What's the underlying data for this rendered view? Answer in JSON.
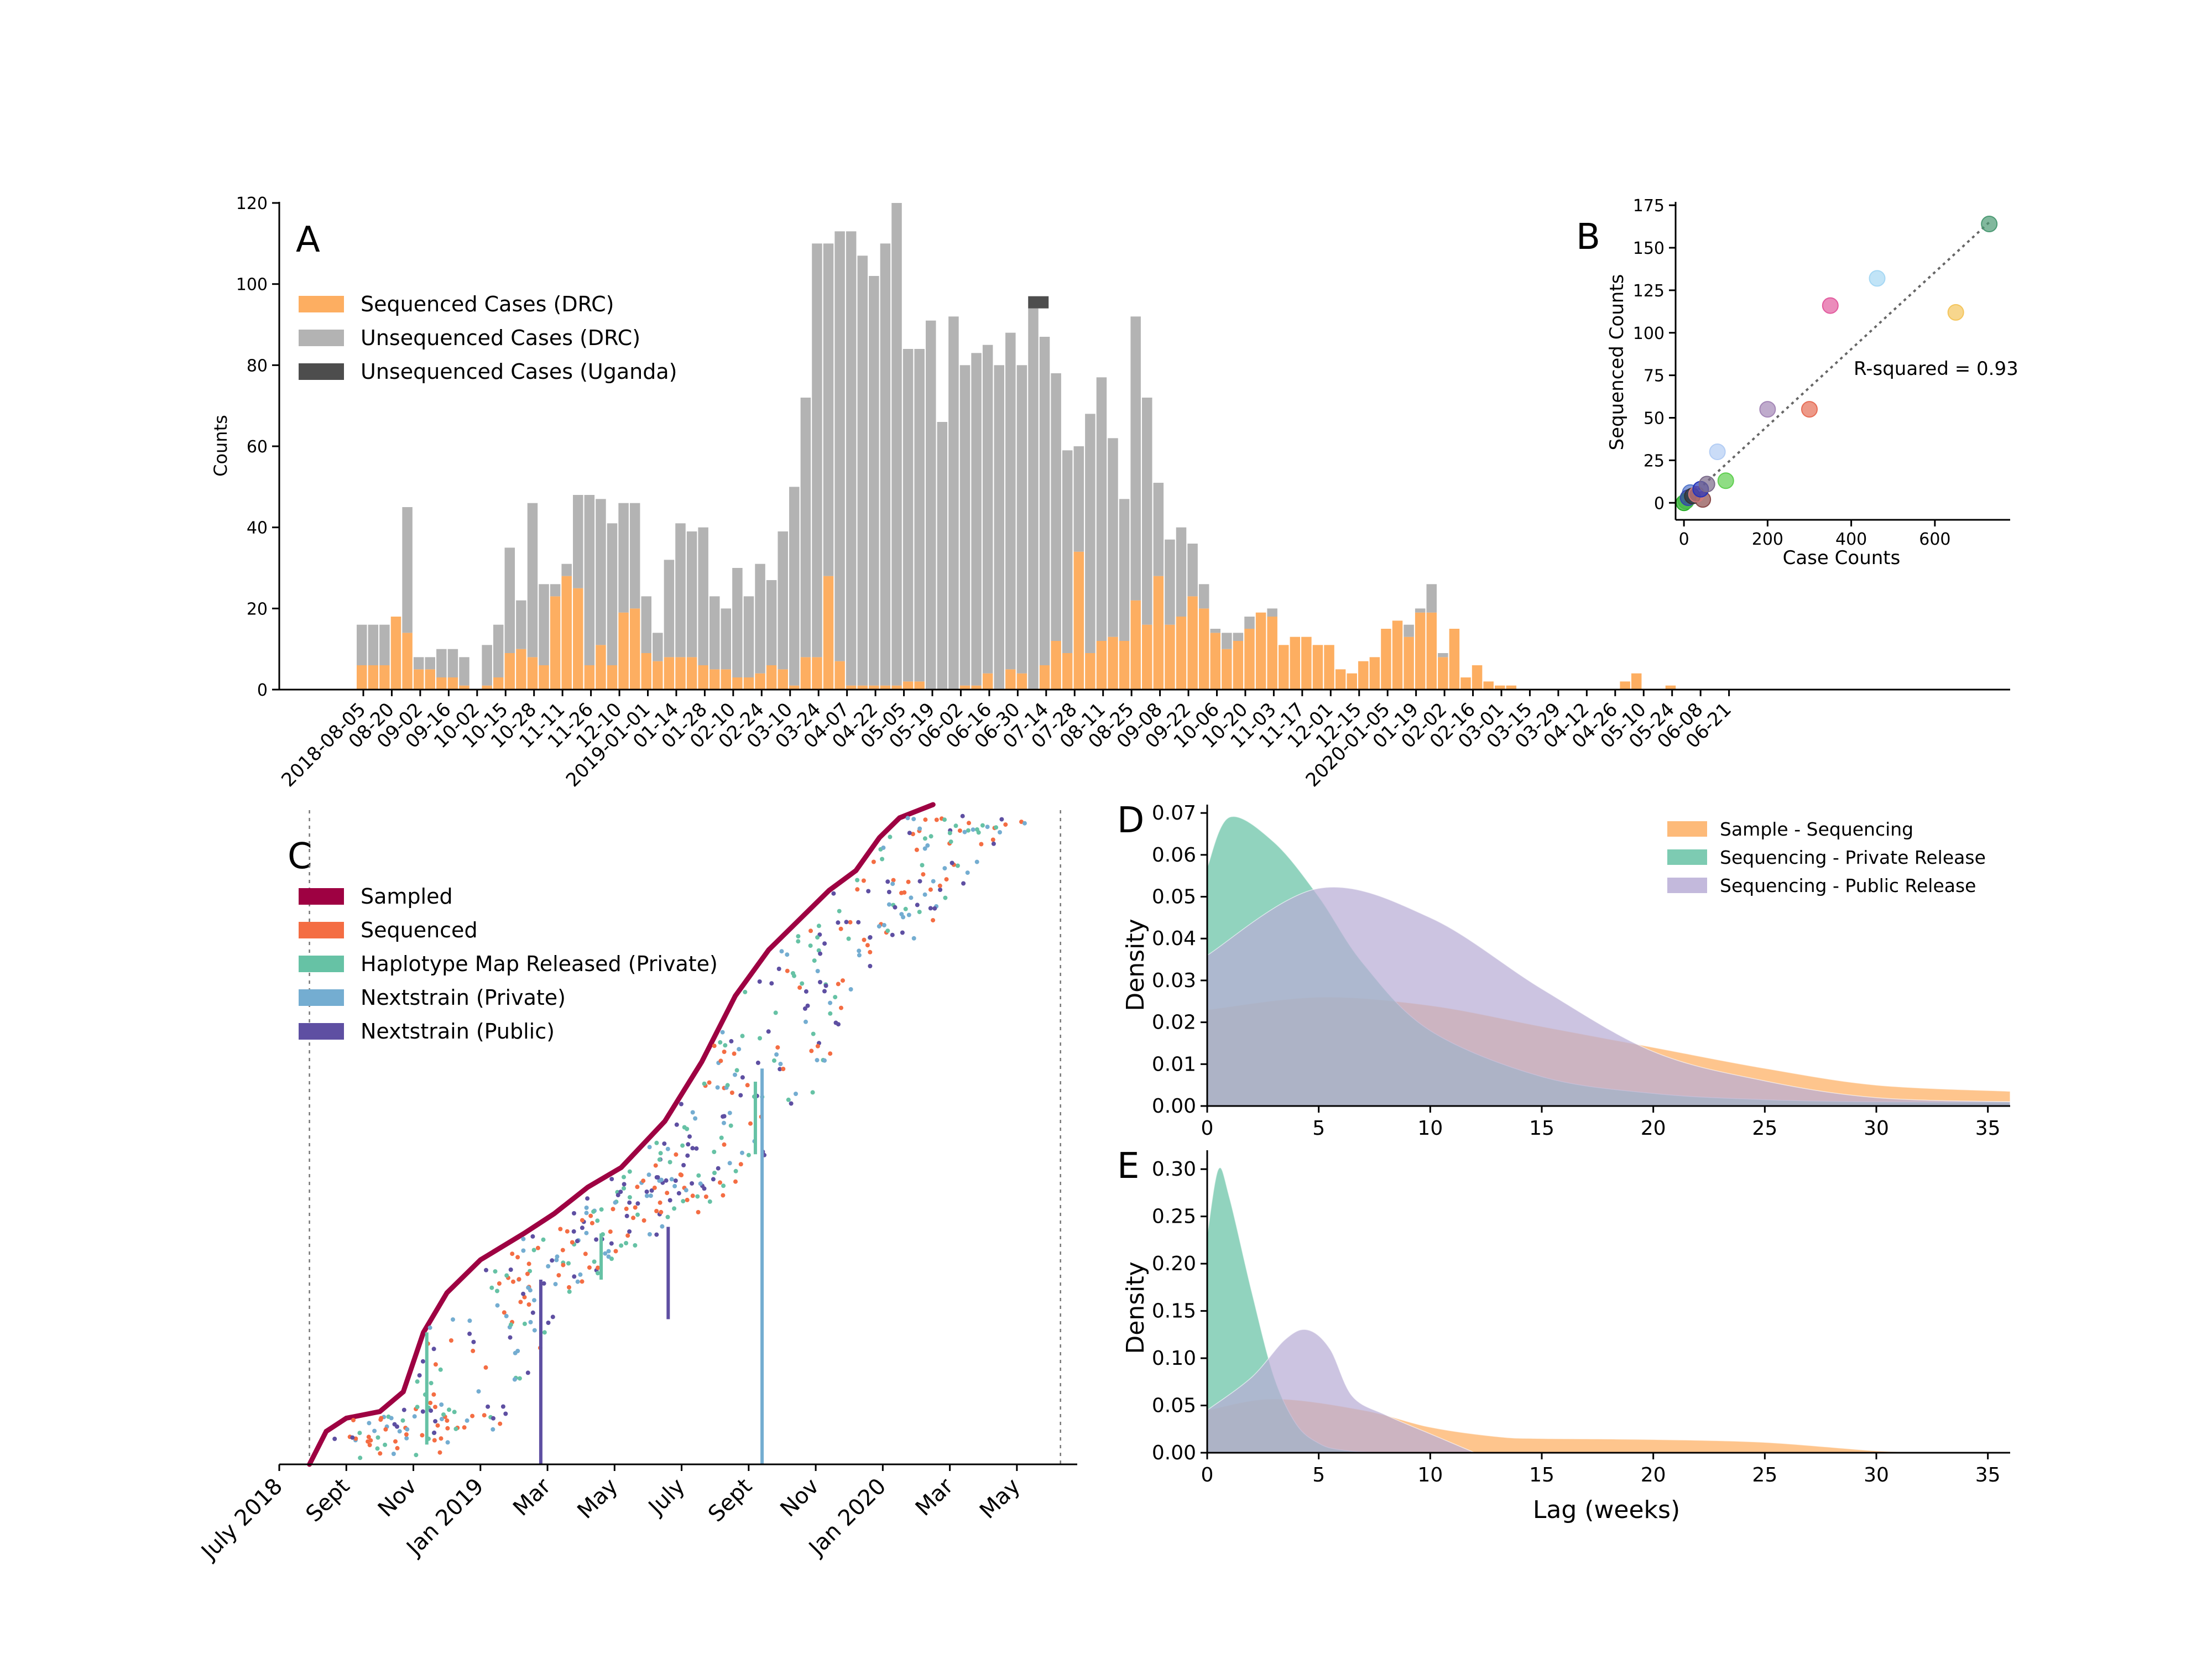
{
  "chart_data": [
    {
      "panel": "A",
      "type": "bar",
      "stacked": true,
      "ylabel": "Counts",
      "ylim": [
        0,
        120
      ],
      "yticks": [
        0,
        20,
        40,
        60,
        80,
        100,
        120
      ],
      "legend": [
        "Sequenced Cases (DRC)",
        "Unsequenced Cases (DRC)",
        "Unsequenced Cases (Uganda)"
      ],
      "colors": {
        "sequenced": "#fdae61",
        "unsequenced": "#b3b3b3",
        "uganda": "#4d4d4d"
      },
      "tick_labels": [
        "2018-08-05",
        "08-20",
        "09-02",
        "09-16",
        "10-02",
        "10-15",
        "10-28",
        "11-11",
        "11-26",
        "12-10",
        "2019-01-01",
        "01-14",
        "01-28",
        "02-10",
        "02-24",
        "03-10",
        "03-24",
        "04-07",
        "04-22",
        "05-05",
        "05-19",
        "06-02",
        "06-16",
        "06-30",
        "07-14",
        "07-28",
        "08-11",
        "08-25",
        "09-08",
        "09-22",
        "10-06",
        "10-20",
        "11-03",
        "11-17",
        "12-01",
        "12-15",
        "2020-01-05",
        "01-19",
        "02-02",
        "02-16",
        "03-01",
        "03-15",
        "03-29",
        "04-12",
        "04-26",
        "05-10",
        "05-24",
        "06-08",
        "06-21"
      ],
      "series": [
        {
          "name": "Sequenced Cases (DRC)",
          "values": [
            6,
            6,
            6,
            18,
            14,
            5,
            5,
            3,
            3,
            1,
            0,
            1,
            3,
            9,
            10,
            8,
            6,
            23,
            28,
            25,
            6,
            11,
            6,
            19,
            20,
            9,
            7,
            8,
            8,
            8,
            6,
            5,
            5,
            3,
            3,
            4,
            6,
            5,
            1,
            8,
            8,
            28,
            7,
            1,
            1,
            1,
            1,
            1,
            2,
            2,
            0,
            0,
            0,
            1,
            1,
            4,
            0,
            5,
            4,
            0,
            6,
            12,
            9,
            34,
            9,
            12,
            13,
            12,
            22,
            16,
            28,
            16,
            18,
            23,
            20,
            14,
            10,
            12,
            15,
            19,
            18,
            11,
            13,
            13,
            11,
            11,
            5,
            4,
            7,
            8,
            15,
            17,
            13,
            19,
            19,
            8,
            15,
            3,
            6,
            2,
            1,
            1,
            0,
            0,
            0,
            0,
            0,
            0,
            0,
            0,
            0,
            2,
            4,
            0,
            0,
            1,
            0,
            0,
            0,
            0,
            0,
            0,
            0,
            0,
            0,
            0
          ]
        },
        {
          "name": "Unsequenced Cases (DRC)",
          "values": [
            10,
            10,
            10,
            0,
            31,
            3,
            3,
            7,
            7,
            7,
            0,
            10,
            13,
            26,
            12,
            38,
            20,
            3,
            3,
            23,
            42,
            36,
            35,
            27,
            26,
            14,
            7,
            24,
            33,
            31,
            34,
            18,
            15,
            27,
            20,
            27,
            21,
            34,
            49,
            64,
            102,
            82,
            106,
            112,
            106,
            101,
            109,
            119,
            82,
            82,
            91,
            66,
            92,
            79,
            82,
            81,
            80,
            83,
            76,
            94,
            81,
            66,
            50,
            26,
            59,
            65,
            49,
            35,
            70,
            56,
            23,
            21,
            22,
            13,
            6,
            1,
            4,
            2,
            3,
            0,
            2,
            0,
            0,
            0,
            0,
            0,
            0,
            0,
            0,
            0,
            0,
            0,
            3,
            1,
            7,
            1,
            0,
            0,
            0,
            0,
            0,
            0,
            0,
            0,
            0,
            0,
            0,
            0,
            0,
            0,
            0,
            0,
            0,
            0,
            0,
            0,
            0,
            0,
            0,
            0,
            0,
            0,
            0,
            0,
            0,
            0
          ]
        },
        {
          "name": "Unsequenced Cases (Uganda)",
          "bars": [
            {
              "index": 59,
              "value": 3
            }
          ]
        }
      ]
    },
    {
      "panel": "B",
      "type": "scatter",
      "xlabel": "Case Counts",
      "ylabel": "Sequenced Counts",
      "xlim": [
        -20,
        780
      ],
      "ylim": [
        -10,
        177
      ],
      "xticks": [
        0,
        200,
        400,
        600
      ],
      "yticks": [
        0,
        25,
        50,
        75,
        100,
        125,
        150,
        175
      ],
      "annotation": "R-squared = 0.93",
      "trend_line": [
        [
          0,
          0
        ],
        [
          730,
          165
        ]
      ],
      "points": [
        {
          "x": 730,
          "y": 164,
          "color": "#4c9a74"
        },
        {
          "x": 462,
          "y": 132,
          "color": "#a6d8f4"
        },
        {
          "x": 350,
          "y": 116,
          "color": "#e25b9e"
        },
        {
          "x": 650,
          "y": 112,
          "color": "#f4c55c"
        },
        {
          "x": 200,
          "y": 55,
          "color": "#a487b7"
        },
        {
          "x": 300,
          "y": 55,
          "color": "#e66d56"
        },
        {
          "x": 80,
          "y": 30,
          "color": "#b3cdf4"
        },
        {
          "x": 100,
          "y": 13,
          "color": "#5fcf50"
        },
        {
          "x": 55,
          "y": 11,
          "color": "#7a6a8a"
        },
        {
          "x": 40,
          "y": 8,
          "color": "#2233bb"
        },
        {
          "x": 30,
          "y": 5,
          "color": "#d07a7a"
        },
        {
          "x": 20,
          "y": 4,
          "color": "#333333"
        },
        {
          "x": 10,
          "y": 3,
          "color": "#3344aa"
        },
        {
          "x": 5,
          "y": 1,
          "color": "#44bb44"
        },
        {
          "x": 0,
          "y": 0,
          "color": "#22aa22"
        },
        {
          "x": 45,
          "y": 2,
          "color": "#8a4a4a"
        },
        {
          "x": 15,
          "y": 6,
          "color": "#5577cc"
        }
      ]
    },
    {
      "panel": "C",
      "type": "scatter",
      "x_tick_labels": [
        "July 2018",
        "Sept",
        "Nov",
        "Jan 2019",
        "Mar",
        "May",
        "July",
        "Sept",
        "Nov",
        "Jan 2020",
        "Mar",
        "May"
      ],
      "x_tick_months": [
        0,
        2,
        4,
        6,
        8,
        10,
        12,
        14,
        16,
        18,
        20,
        22
      ],
      "xlim_months": [
        0,
        23.8
      ],
      "legend": [
        "Sampled",
        "Sequenced",
        "Haplotype Map Released (Private)",
        "Nextstrain (Private)",
        "Nextstrain (Public)"
      ],
      "colors": {
        "Sampled": "#9e0142",
        "Sequenced": "#f46d43",
        "Haplotype Map Released (Private)": "#66c2a5",
        "Nextstrain (Private)": "#74add1",
        "Nextstrain (Public)": "#5e4fa2"
      },
      "reference_lines_months": [
        0.9,
        23.3
      ]
    },
    {
      "panel": "D",
      "type": "area",
      "ylabel": "Density",
      "xlim": [
        0,
        36
      ],
      "ylim": [
        0,
        0.072
      ],
      "xticks": [
        0,
        5,
        10,
        15,
        20,
        25,
        30,
        35
      ],
      "yticks": [
        0.0,
        0.01,
        0.02,
        0.03,
        0.04,
        0.05,
        0.06,
        0.07
      ],
      "legend": [
        "Sample - Sequencing",
        "Sequencing - Private Release",
        "Sequencing - Public Release"
      ],
      "series": [
        {
          "name": "Sample - Sequencing",
          "color": "#fdae61",
          "x": [
            0,
            5,
            10,
            15,
            20,
            25,
            30,
            36
          ],
          "values": [
            0.023,
            0.026,
            0.024,
            0.019,
            0.014,
            0.009,
            0.005,
            0.0035
          ]
        },
        {
          "name": "Sequencing - Private Release",
          "color": "#66c2a5",
          "x": [
            0,
            1,
            3,
            5,
            7,
            10,
            15,
            20,
            25,
            30,
            36
          ],
          "values": [
            0.057,
            0.069,
            0.063,
            0.05,
            0.034,
            0.018,
            0.007,
            0.003,
            0.0015,
            0.001,
            0.001
          ]
        },
        {
          "name": "Sequencing - Public Release",
          "color": "#b8add6",
          "x": [
            0,
            5,
            10,
            15,
            20,
            25,
            30,
            36
          ],
          "values": [
            0.036,
            0.052,
            0.045,
            0.028,
            0.013,
            0.006,
            0.002,
            0.001
          ]
        }
      ]
    },
    {
      "panel": "E",
      "type": "area",
      "xlabel": "Lag (weeks)",
      "ylabel": "Density",
      "xlim": [
        0,
        36
      ],
      "ylim": [
        0,
        0.32
      ],
      "xticks": [
        0,
        5,
        10,
        15,
        20,
        25,
        30,
        35
      ],
      "yticks": [
        0.0,
        0.05,
        0.1,
        0.15,
        0.2,
        0.25,
        0.3
      ],
      "series": [
        {
          "name": "Sample - Sequencing",
          "color": "#fdae61",
          "x": [
            0,
            3,
            7,
            10,
            13,
            15,
            20,
            25,
            30,
            33,
            35
          ],
          "values": [
            0.045,
            0.057,
            0.045,
            0.027,
            0.017,
            0.015,
            0.014,
            0.011,
            0.002,
            0.0,
            0.0
          ]
        },
        {
          "name": "Sequencing - Private Release",
          "color": "#66c2a5",
          "x": [
            0,
            0.5,
            1,
            2,
            3,
            4,
            5,
            6,
            8,
            12
          ],
          "values": [
            0.23,
            0.3,
            0.27,
            0.17,
            0.08,
            0.03,
            0.01,
            0.003,
            0.0,
            0.0
          ]
        },
        {
          "name": "Sequencing - Public Release",
          "color": "#b8add6",
          "x": [
            0,
            2,
            3.5,
            4.5,
            5.5,
            6.5,
            8,
            10,
            12
          ],
          "values": [
            0.045,
            0.08,
            0.12,
            0.13,
            0.11,
            0.06,
            0.04,
            0.02,
            0.0
          ]
        }
      ]
    }
  ],
  "labels": {
    "panel_a": "A",
    "panel_b": "B",
    "panel_c": "C",
    "panel_d": "D",
    "panel_e": "E"
  }
}
